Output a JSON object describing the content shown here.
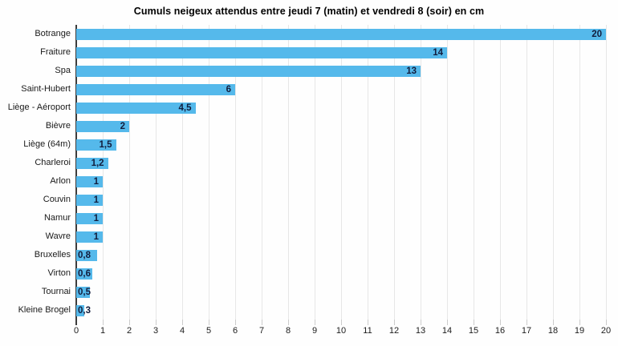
{
  "chart_data": {
    "type": "bar",
    "orientation": "horizontal",
    "title": "Cumuls neigeux attendus entre jeudi 7 (matin) et vendredi 8 (soir) en cm",
    "categories": [
      "Botrange",
      "Fraiture",
      "Spa",
      "Saint-Hubert",
      "Liège - Aéroport",
      "Bièvre",
      "Liège (64m)",
      "Charleroi",
      "Arlon",
      "Couvin",
      "Namur",
      "Wavre",
      "Bruxelles",
      "Virton",
      "Tournai",
      "Kleine Brogel"
    ],
    "values": [
      20,
      14,
      13,
      6,
      4.5,
      2,
      1.5,
      1.2,
      1,
      1,
      1,
      1,
      0.8,
      0.6,
      0.5,
      0.3
    ],
    "value_labels": [
      "20",
      "14",
      "13",
      "6",
      "4,5",
      "2",
      "1,5",
      "1,2",
      "1",
      "1",
      "1",
      "1",
      "0,8",
      "0,6",
      "0,5",
      "0,3"
    ],
    "xlabel": "",
    "ylabel": "",
    "x_ticks": [
      0,
      1,
      2,
      3,
      4,
      5,
      6,
      7,
      8,
      9,
      10,
      11,
      12,
      13,
      14,
      15,
      16,
      17,
      18,
      19,
      20
    ],
    "xlim": [
      0,
      20
    ],
    "grid": "vertical",
    "legend": "none",
    "colors": {
      "bar": "#55B9EB",
      "value_label": "#121d3d",
      "gridline": "#e7e7e7",
      "axis_line": "#3c3c3c",
      "tick": "#cccccc",
      "background": "#fefefe"
    }
  }
}
